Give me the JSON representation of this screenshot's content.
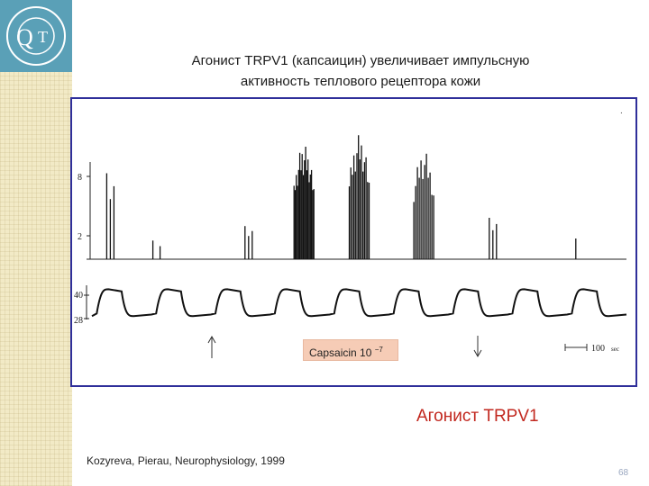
{
  "slide": {
    "title_line1": "Агонист TRPV1 (капсаицин) увеличивает импульсную",
    "title_line2": "активность теплового рецептора кожи",
    "subtitle": "Агонист TRPV1",
    "citation": "Kozyreva, Pierau, Neurophysiology, 1999",
    "page_number": "68",
    "logo_letters": "QT",
    "colors": {
      "title_text": "#1a1a1a",
      "subtitle_text": "#c2281f",
      "figure_border": "#2f2f9a",
      "label_box": "#f6ccb6",
      "sidebar": "#f2eac6",
      "logo": "#5aa0b7"
    }
  },
  "chart_data": {
    "type": "line",
    "panels": [
      {
        "name": "impulse-activity",
        "tick_labels": [
          "8",
          "2"
        ],
        "spike_bursts": [
          {
            "t": 20,
            "peak": 8.3,
            "count": 3
          },
          {
            "t": 70,
            "peak": 1.8,
            "count": 2
          },
          {
            "t": 170,
            "peak": 3.2,
            "count": 3
          },
          {
            "t": 230,
            "peak": 11.0,
            "count": 18
          },
          {
            "t": 290,
            "peak": 12.0,
            "count": 14
          },
          {
            "t": 360,
            "peak": 10.5,
            "count": 12
          },
          {
            "t": 435,
            "peak": 4.0,
            "count": 3
          },
          {
            "t": 525,
            "peak": 2.0,
            "count": 1
          }
        ]
      },
      {
        "name": "skin-temperature",
        "tick_labels": [
          "40",
          "28"
        ],
        "ylim": [
          28,
          40
        ],
        "cycles": 9,
        "high": 39.5,
        "low": 29
      }
    ],
    "annotations": {
      "capsaicin_label": "Capsaicin 10",
      "capsaicin_exponent": "−7",
      "scale_bar_label": "100",
      "scale_bar_unit": "sec",
      "dot_mark": "."
    }
  }
}
